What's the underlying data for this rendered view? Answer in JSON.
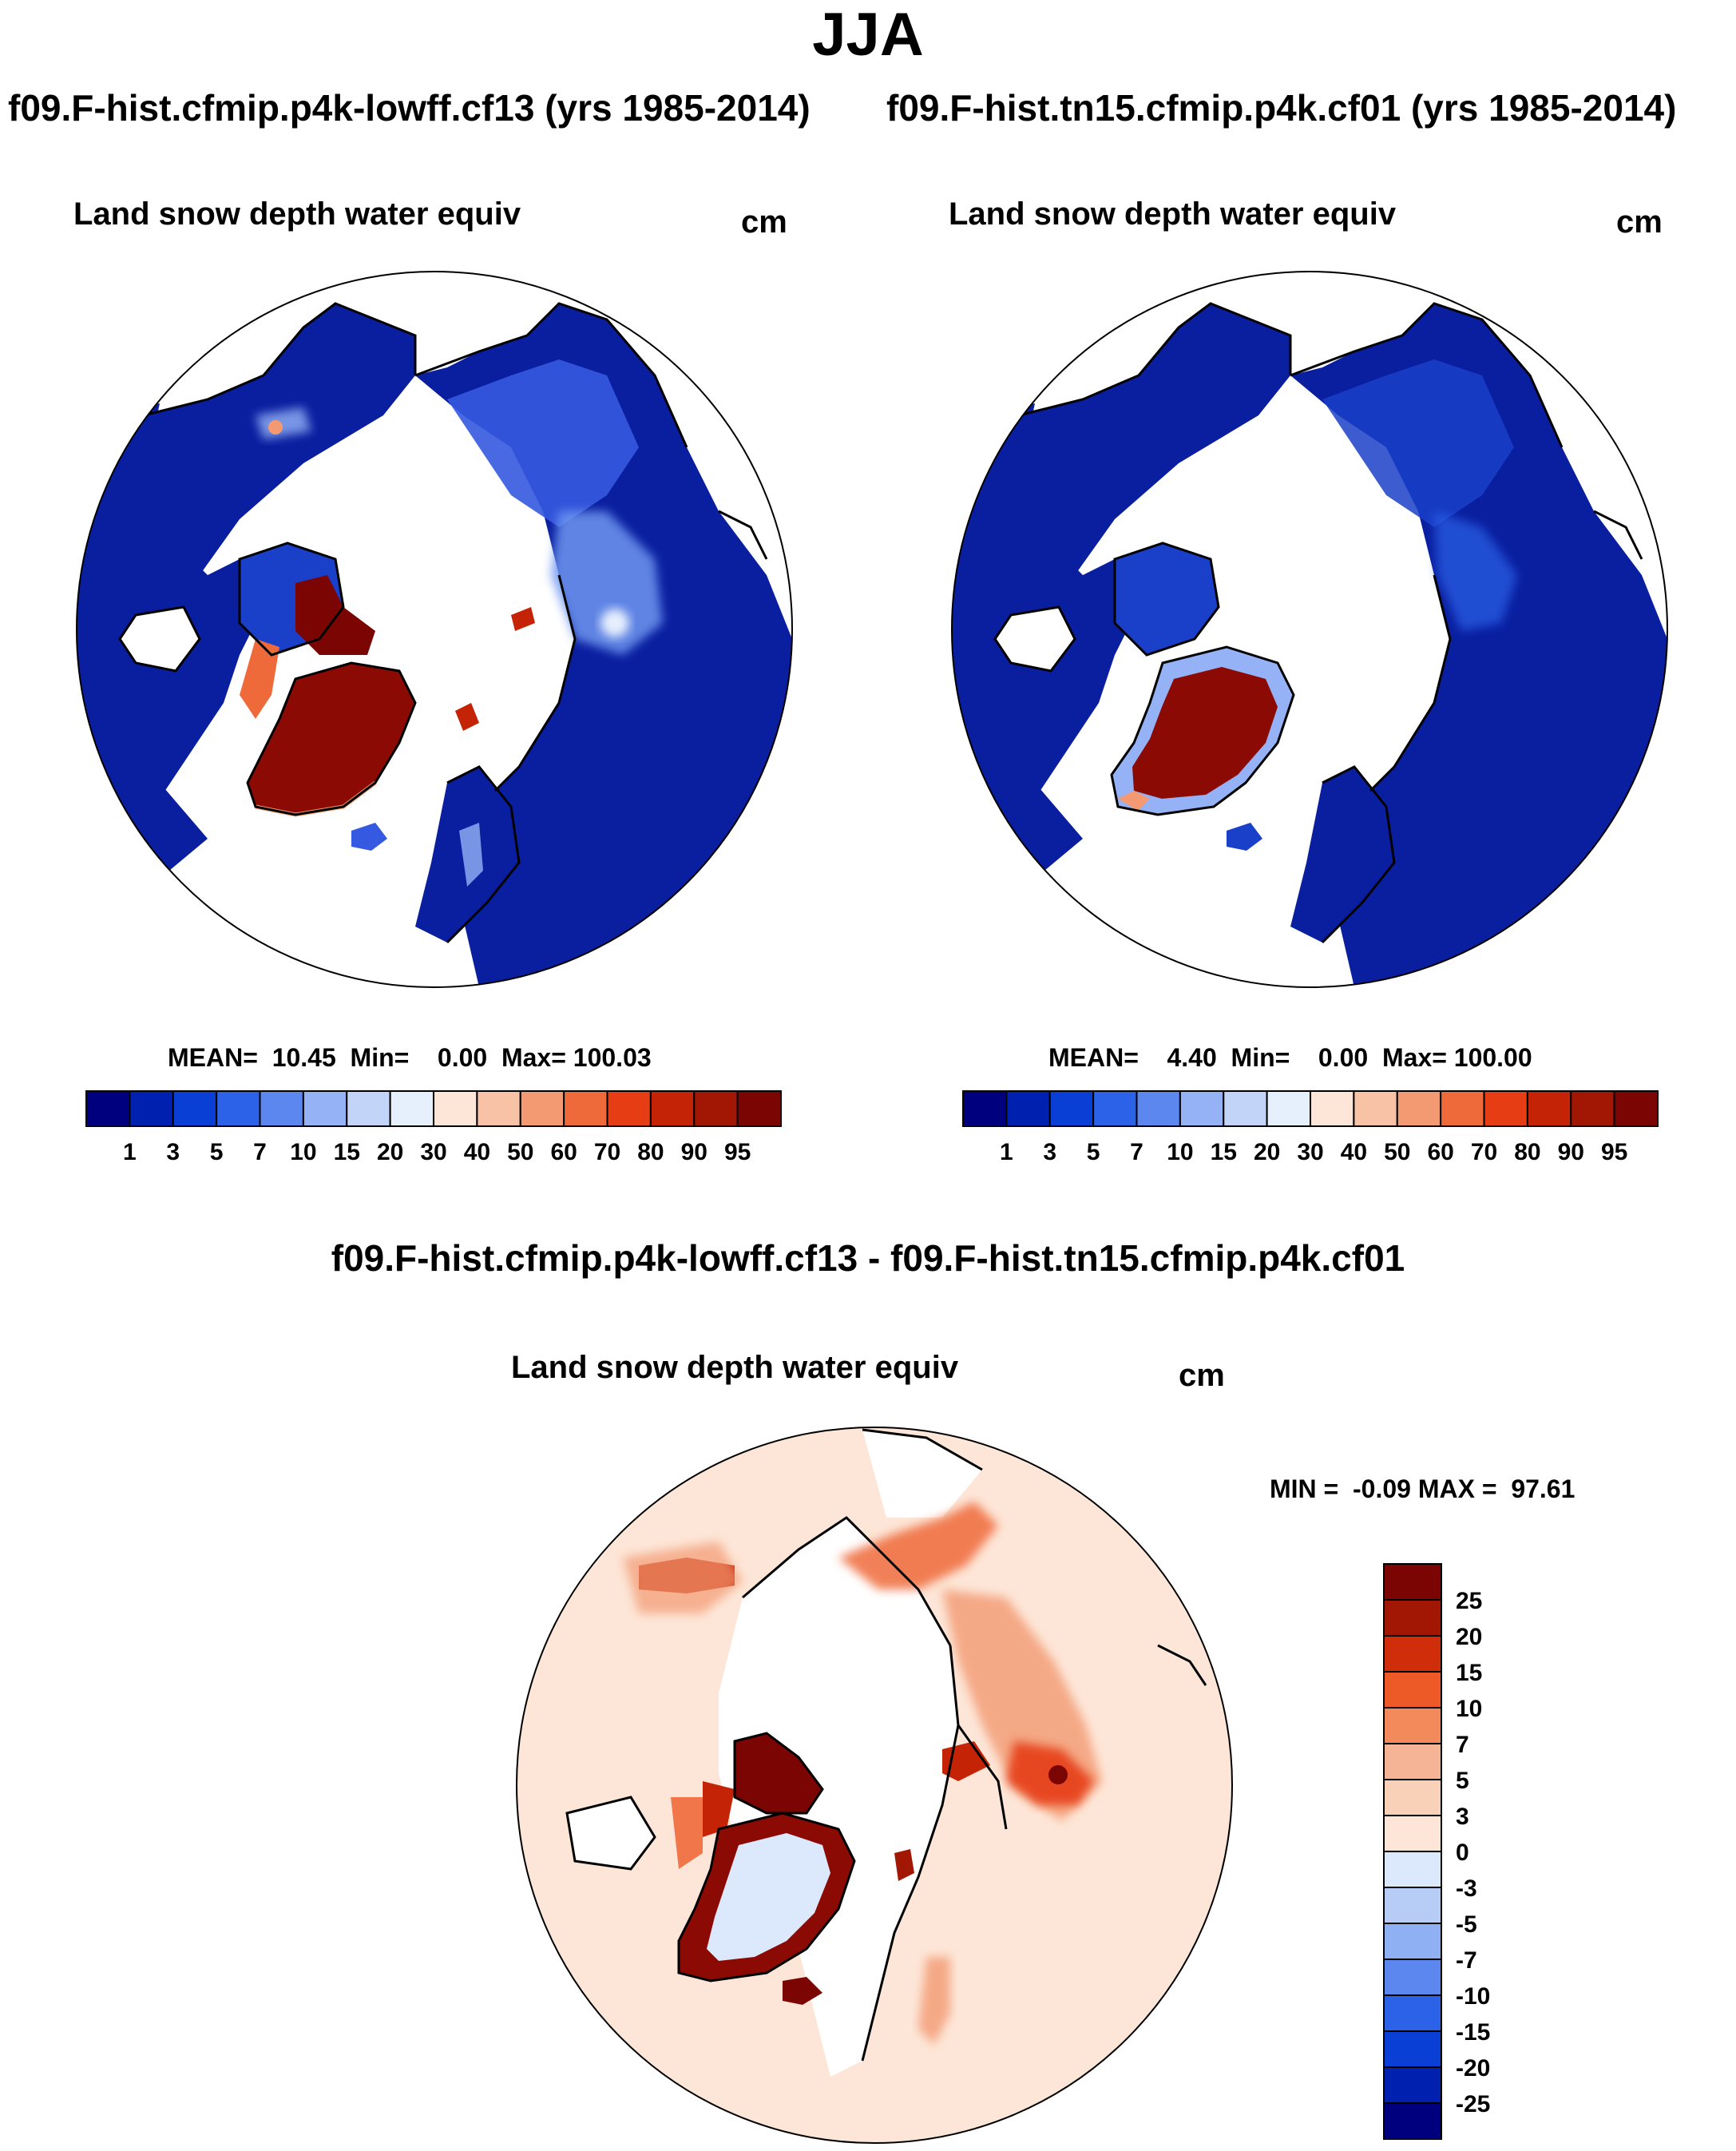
{
  "title": "JJA",
  "panel_left": {
    "case": "f09.F-hist.cfmip.p4k-lowff.cf13 (yrs 1985-2014)",
    "variable": "Land snow depth water equiv",
    "units": "cm",
    "stats": "MEAN=  10.45  Min=    0.00  Max= 100.03"
  },
  "panel_right": {
    "case": "f09.F-hist.tn15.cfmip.p4k.cf01 (yrs 1985-2014)",
    "variable": "Land snow depth water equiv",
    "units": "cm",
    "stats": "MEAN=    4.40  Min=    0.00  Max= 100.00"
  },
  "panel_diff": {
    "case": "f09.F-hist.cfmip.p4k-lowff.cf13 - f09.F-hist.tn15.cfmip.p4k.cf01",
    "variable": "Land snow depth water equiv",
    "units": "cm",
    "stats": "MIN =  -0.09 MAX =  97.61"
  },
  "colorbar_main": {
    "levels": [
      "1",
      "3",
      "5",
      "7",
      "10",
      "15",
      "20",
      "30",
      "40",
      "50",
      "60",
      "70",
      "80",
      "90",
      "95"
    ],
    "colors": [
      "#00007f",
      "#0020b0",
      "#0a3fd6",
      "#2b62e8",
      "#5b87ef",
      "#94b2f5",
      "#c2d4f7",
      "#e6effc",
      "#fde6d7",
      "#f8c2a6",
      "#f39a72",
      "#ef6a3b",
      "#e63d14",
      "#c42306",
      "#a21704",
      "#7a0503"
    ]
  },
  "colorbar_diff": {
    "levels": [
      "25",
      "20",
      "15",
      "10",
      "7",
      "5",
      "3",
      "0",
      "-3",
      "-5",
      "-7",
      "-10",
      "-15",
      "-20",
      "-25"
    ],
    "colors": [
      "#7a0503",
      "#a21704",
      "#d02e0a",
      "#ed5a28",
      "#f28a5c",
      "#f6b496",
      "#f9d0b8",
      "#fde6d7",
      "#dce8fb",
      "#b7cdf6",
      "#8fb0f2",
      "#5b87ef",
      "#2b62e8",
      "#0a3fd6",
      "#0020b0",
      "#00007f"
    ]
  }
}
